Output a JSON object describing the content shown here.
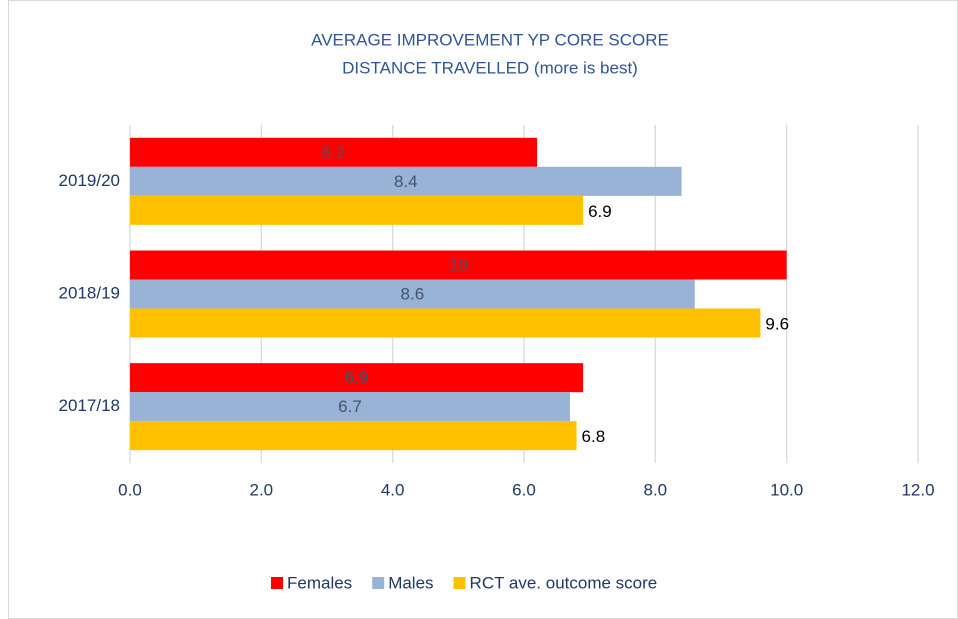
{
  "chart_data": {
    "type": "bar",
    "orientation": "horizontal",
    "title": [
      "AVERAGE IMPROVEMENT YP CORE SCORE",
      "DISTANCE TRAVELLED (more is best)"
    ],
    "categories": [
      "2019/20",
      "2018/19",
      "2017/18"
    ],
    "series": [
      {
        "name": "Females",
        "color": "#ff0000",
        "values": [
          6.2,
          10,
          6.9
        ]
      },
      {
        "name": "Males",
        "color": "#98b3d6",
        "values": [
          8.4,
          8.6,
          6.7
        ]
      },
      {
        "name": "RCT ave. outcome score",
        "color": "#ffc000",
        "values": [
          6.9,
          9.6,
          6.8
        ]
      }
    ],
    "xlim": [
      0,
      12
    ],
    "xticks": [
      {
        "value": 0,
        "label": "0.0"
      },
      {
        "value": 2,
        "label": "2.0"
      },
      {
        "value": 4,
        "label": "4.0"
      },
      {
        "value": 6,
        "label": "6.0"
      },
      {
        "value": 8,
        "label": "8.0"
      },
      {
        "value": 10,
        "label": "10.0"
      },
      {
        "value": 12,
        "label": "12.0"
      }
    ],
    "grid": true,
    "legend": "bottom"
  }
}
